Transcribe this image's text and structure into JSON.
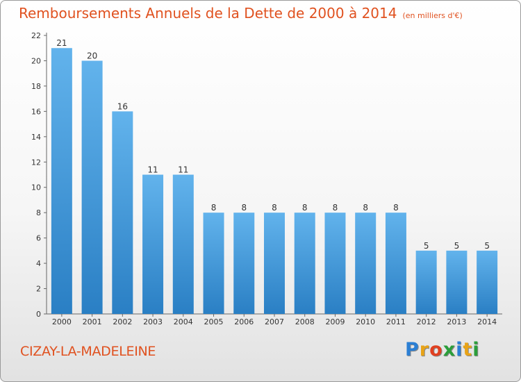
{
  "chart_data": {
    "type": "bar",
    "title": "Remboursements Annuels de la Dette de 2000 à 2014",
    "unit_note": "(en milliers d'€)",
    "xlabel": "",
    "ylabel": "",
    "categories": [
      "2000",
      "2001",
      "2002",
      "2003",
      "2004",
      "2005",
      "2006",
      "2007",
      "2008",
      "2009",
      "2010",
      "2011",
      "2012",
      "2013",
      "2014"
    ],
    "values": [
      21,
      20,
      16,
      11,
      11,
      8,
      8,
      8,
      8,
      8,
      8,
      8,
      5,
      5,
      5
    ],
    "data_labels": [
      "21",
      "20",
      "16",
      "11",
      "11",
      "8",
      "8",
      "8",
      "8",
      "8",
      "8",
      "8",
      "5",
      "5",
      "5"
    ],
    "ylim": [
      0,
      22
    ],
    "yticks": [
      0,
      2,
      4,
      6,
      8,
      10,
      12,
      14,
      16,
      18,
      20,
      22
    ],
    "ytick_labels": [
      "0",
      "2",
      "4",
      "6",
      "8",
      "10",
      "12",
      "14",
      "16",
      "18",
      "20",
      "22"
    ],
    "grid": false,
    "colors": {
      "bar_light": "#62b3ec",
      "bar_dark": "#2a7fc4",
      "text_accent": "#e0511f"
    }
  },
  "footer": {
    "commune": "CIZAY-LA-MADELEINE",
    "logo_letters": [
      {
        "ch": "P",
        "color": "#2b7fd4"
      },
      {
        "ch": "r",
        "color": "#e8a317"
      },
      {
        "ch": "o",
        "color": "#e04020"
      },
      {
        "ch": "x",
        "color": "#2b9e3a"
      },
      {
        "ch": "i",
        "color": "#2b7fd4"
      },
      {
        "ch": "t",
        "color": "#e8a317"
      },
      {
        "ch": "i",
        "color": "#2b9e3a"
      }
    ]
  }
}
